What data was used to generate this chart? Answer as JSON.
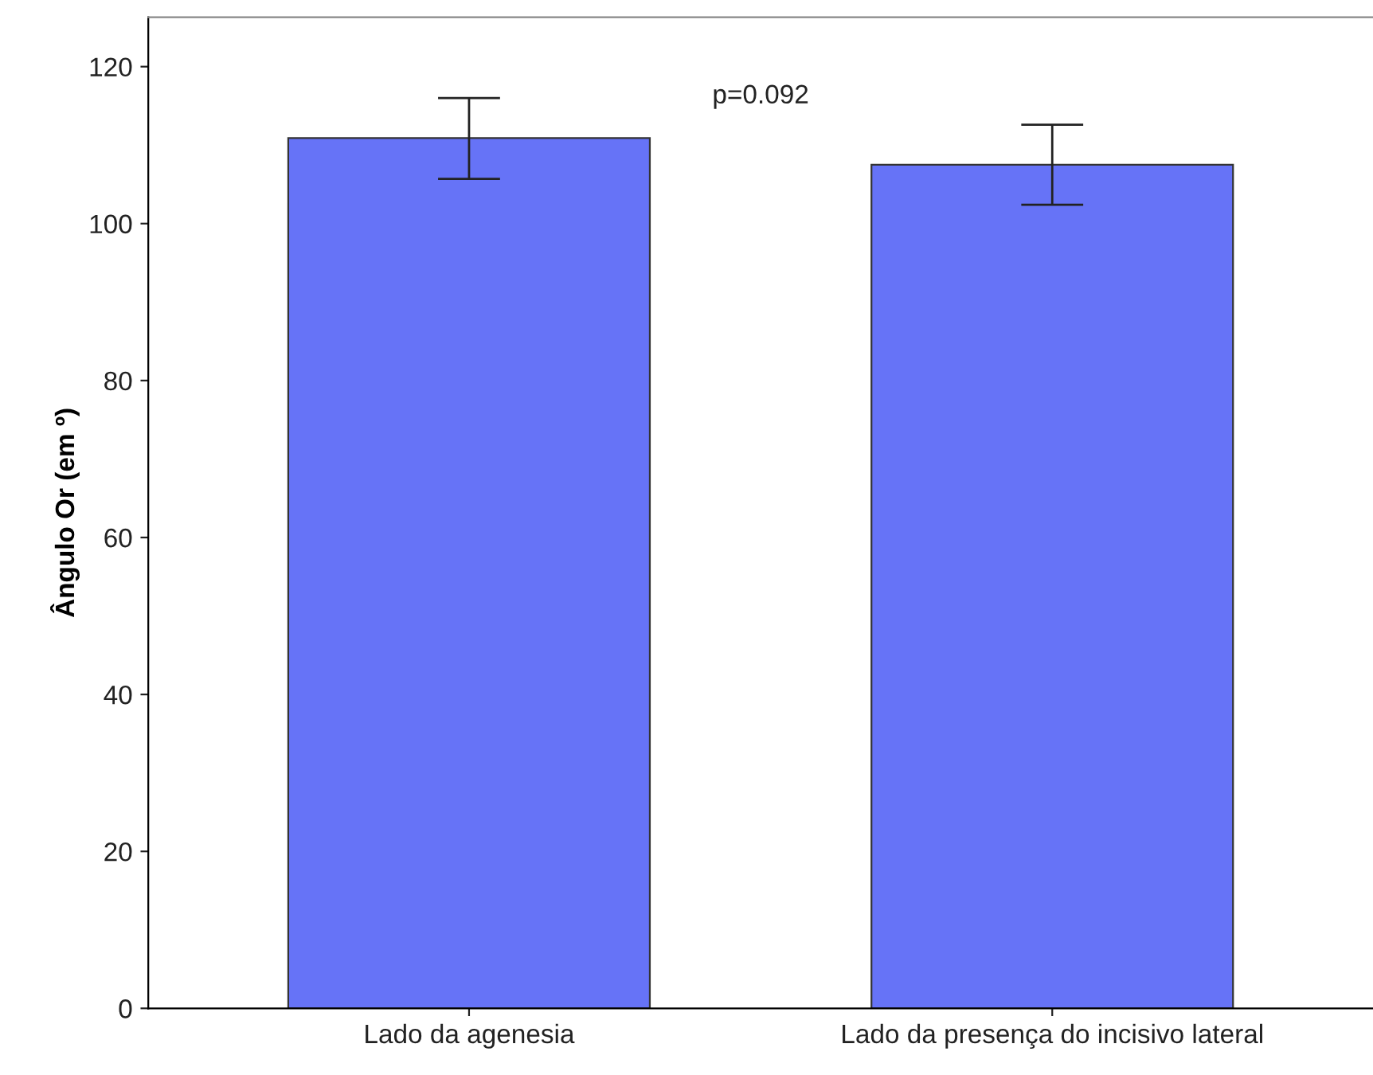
{
  "chart_data": {
    "type": "bar",
    "ylabel": "Ângulo Or (em º)",
    "categories": [
      "Lado da agenesia",
      "Lado da presença do incisivo lateral"
    ],
    "values": [
      110.9,
      107.5
    ],
    "color": "#6673f7",
    "errors": [
      [
        105.7,
        116.0
      ],
      [
        102.4,
        112.6
      ]
    ],
    "ylim": [
      0,
      126.3
    ],
    "yticks": [
      0,
      20,
      40,
      60,
      80,
      100,
      120
    ],
    "grid": false,
    "annotations": [
      "p=0.092"
    ]
  }
}
